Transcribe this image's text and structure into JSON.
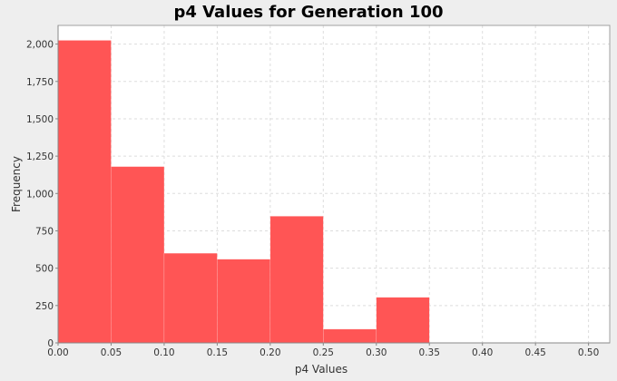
{
  "chart_data": {
    "type": "bar",
    "title": "p4 Values for Generation 100",
    "xlabel": "p4 Values",
    "ylabel": "Frequency",
    "bin_width": 0.05,
    "bins": [
      {
        "start": 0.0,
        "end": 0.05,
        "value": 2025
      },
      {
        "start": 0.05,
        "end": 0.1,
        "value": 1180
      },
      {
        "start": 0.1,
        "end": 0.15,
        "value": 600
      },
      {
        "start": 0.15,
        "end": 0.2,
        "value": 560
      },
      {
        "start": 0.2,
        "end": 0.25,
        "value": 848
      },
      {
        "start": 0.25,
        "end": 0.3,
        "value": 92
      },
      {
        "start": 0.3,
        "end": 0.35,
        "value": 305
      },
      {
        "start": 0.35,
        "end": 0.4,
        "value": 2
      },
      {
        "start": 0.4,
        "end": 0.45,
        "value": 0
      },
      {
        "start": 0.45,
        "end": 0.5,
        "value": 3
      }
    ],
    "xlim": [
      0.0,
      0.52
    ],
    "ylim": [
      0,
      2125
    ],
    "x_ticks": [
      {
        "value": 0.0,
        "label": "0.00"
      },
      {
        "value": 0.05,
        "label": "0.05"
      },
      {
        "value": 0.1,
        "label": "0.10"
      },
      {
        "value": 0.15,
        "label": "0.15"
      },
      {
        "value": 0.2,
        "label": "0.20"
      },
      {
        "value": 0.25,
        "label": "0.25"
      },
      {
        "value": 0.3,
        "label": "0.30"
      },
      {
        "value": 0.35,
        "label": "0.35"
      },
      {
        "value": 0.4,
        "label": "0.40"
      },
      {
        "value": 0.45,
        "label": "0.45"
      },
      {
        "value": 0.5,
        "label": "0.50"
      }
    ],
    "y_ticks": [
      {
        "value": 0,
        "label": "0"
      },
      {
        "value": 250,
        "label": "250"
      },
      {
        "value": 500,
        "label": "500"
      },
      {
        "value": 750,
        "label": "750"
      },
      {
        "value": 1000,
        "label": "1,000"
      },
      {
        "value": 1250,
        "label": "1,250"
      },
      {
        "value": 1500,
        "label": "1,500"
      },
      {
        "value": 1750,
        "label": "1,750"
      },
      {
        "value": 2000,
        "label": "2,000"
      }
    ],
    "grid": true,
    "legend": "none",
    "colors": {
      "bar": "#ff5555",
      "plot_background": "#ffffff",
      "outer_background": "#eeeeee",
      "grid": "#dddddd"
    }
  }
}
